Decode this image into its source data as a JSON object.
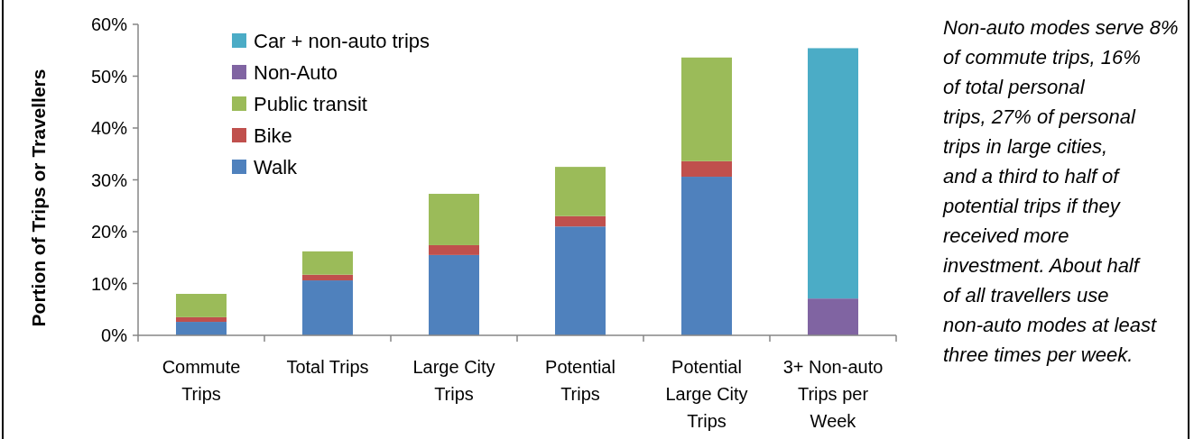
{
  "chart_data": {
    "type": "bar",
    "stacked": true,
    "ylabel": "Portion of Trips or Travellers",
    "categories": [
      "Commute Trips",
      "Total Trips",
      "Large City Trips",
      "Potential Trips",
      "Potential Large City Trips",
      "3+ Non-auto Trips per Week"
    ],
    "series": [
      {
        "name": "Walk",
        "color": "#4f81bd",
        "values": [
          2.6,
          10.6,
          15.5,
          21.0,
          30.6,
          null
        ]
      },
      {
        "name": "Bike",
        "color": "#c0504d",
        "values": [
          0.9,
          1.1,
          1.9,
          2.0,
          3.0,
          null
        ]
      },
      {
        "name": "Public transit",
        "color": "#9bbb59",
        "values": [
          4.5,
          4.5,
          9.9,
          9.5,
          20.0,
          null
        ]
      },
      {
        "name": "Non-Auto",
        "color": "#8064a2",
        "values": [
          null,
          null,
          null,
          null,
          null,
          7.1
        ]
      },
      {
        "name": "Car + non-auto trips",
        "color": "#4bacc6",
        "values": [
          null,
          null,
          null,
          null,
          null,
          48.3
        ]
      }
    ],
    "ylim": [
      0,
      60
    ],
    "yticks": [
      {
        "value": 0,
        "label": "0%"
      },
      {
        "value": 10,
        "label": "10%"
      },
      {
        "value": 20,
        "label": "20%"
      },
      {
        "value": 30,
        "label": "30%"
      },
      {
        "value": 40,
        "label": "40%"
      },
      {
        "value": 50,
        "label": "50%"
      },
      {
        "value": 60,
        "label": "60%"
      }
    ],
    "grid": false,
    "legend": "top left",
    "annotations": [
      "Non-auto modes serve 8% of commute trips, 16% of total personal trips, 27% of personal trips in large cities, and a third to half of potential trips if they received more investment. About half of all travellers use non-auto modes at least three times per week."
    ]
  }
}
